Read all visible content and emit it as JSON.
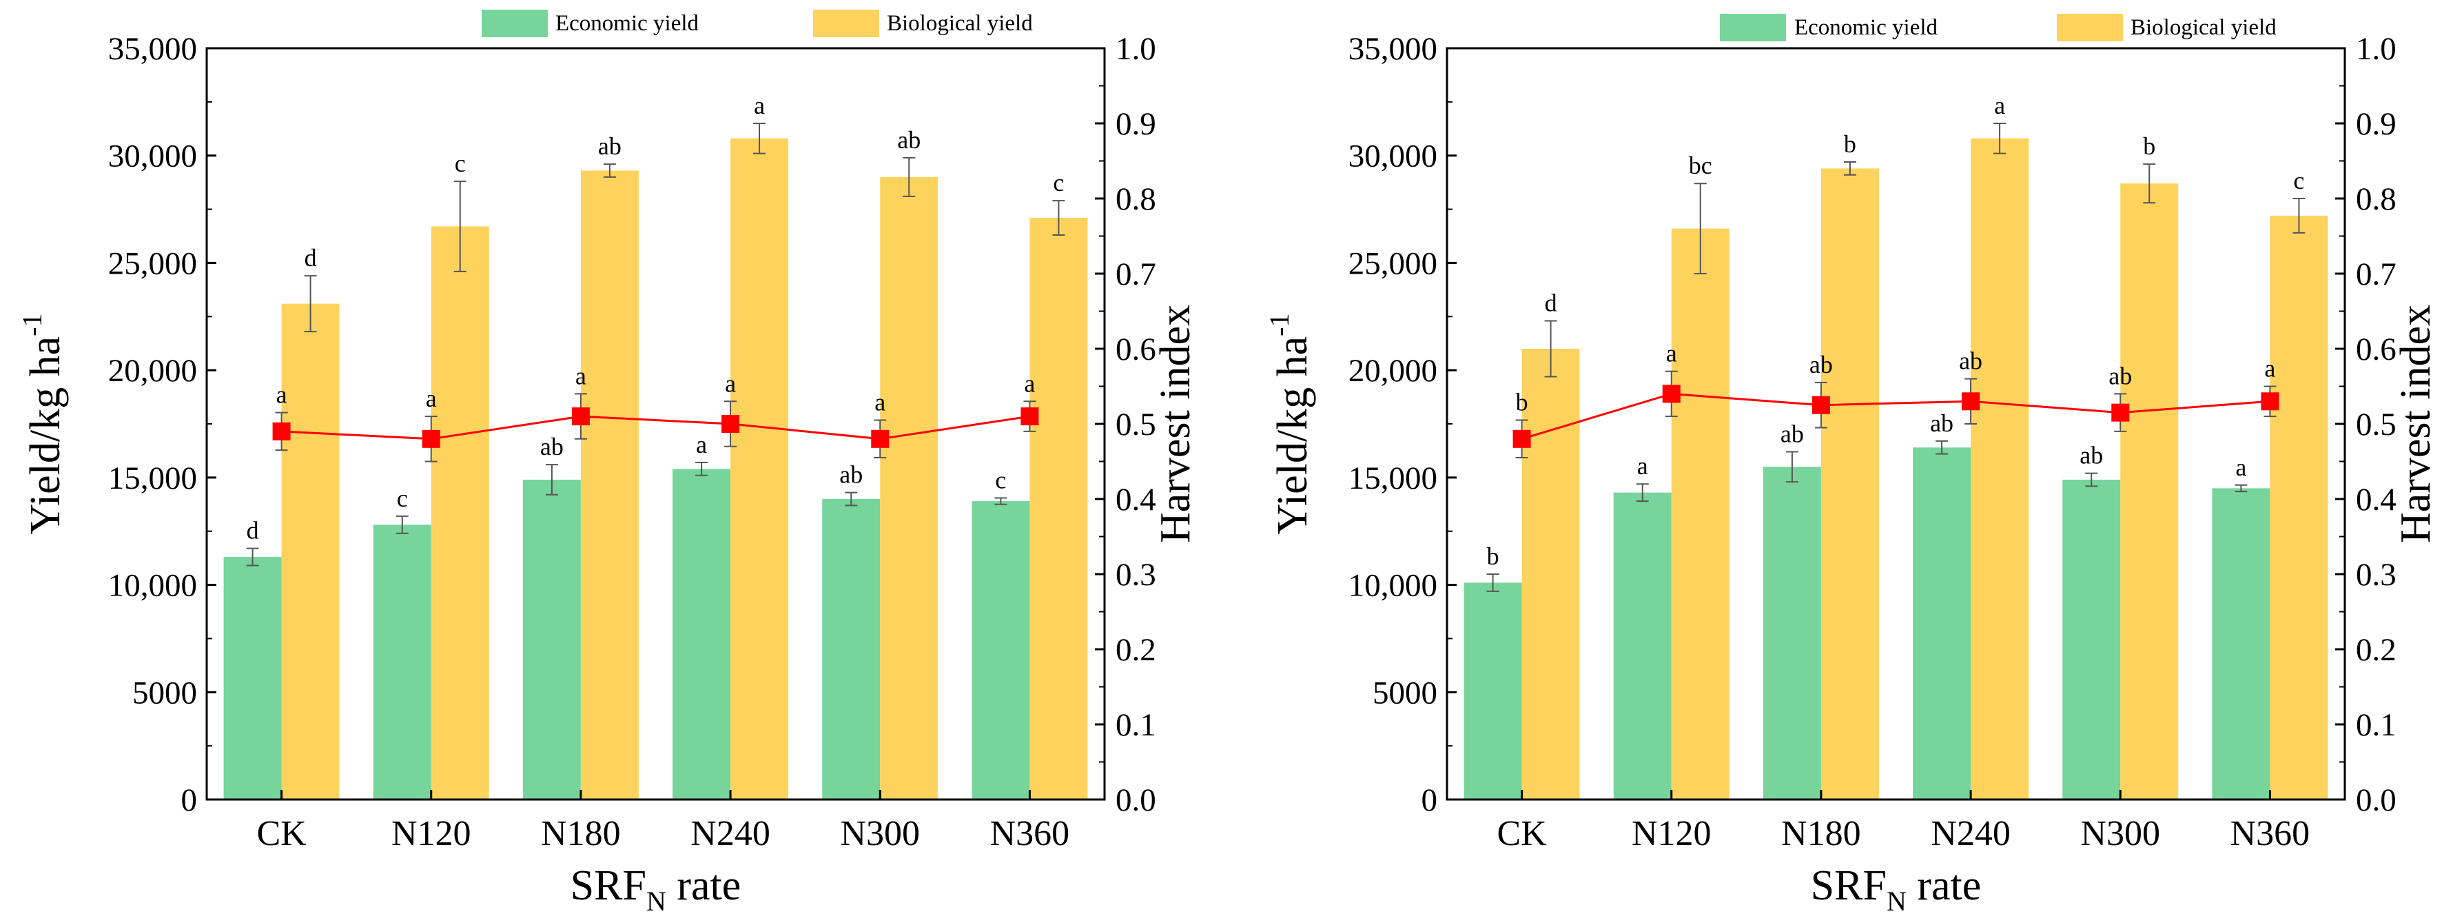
{
  "chart_data": [
    {
      "type": "bar",
      "categories": [
        "CK",
        "N120",
        "N180",
        "N240",
        "N300",
        "N360"
      ],
      "xlabel": {
        "main": "SRF",
        "sub": "N",
        "rest": " rate"
      },
      "ylabel": {
        "main": "Yield/kg ha",
        "sup": "-1"
      },
      "y2label": "Harvest index",
      "ylim": [
        0,
        35000
      ],
      "y2lim": [
        0,
        1.0
      ],
      "yticks": [
        0,
        5000,
        10000,
        15000,
        20000,
        25000,
        30000,
        35000
      ],
      "ytick_labels": [
        "0",
        "5000",
        "10,000",
        "15,000",
        "20,000",
        "25,000",
        "30,000",
        "35,000"
      ],
      "y2ticks": [
        0,
        0.1,
        0.2,
        0.3,
        0.4,
        0.5,
        0.6,
        0.7,
        0.8,
        0.9,
        1.0
      ],
      "y2tick_labels": [
        "0.0",
        "0.1",
        "0.2",
        "0.3",
        "0.4",
        "0.5",
        "0.6",
        "0.7",
        "0.8",
        "0.9",
        "1.0"
      ],
      "legend": {
        "position": "top",
        "entries": [
          "Economic yield",
          "Biological yield"
        ]
      },
      "series": [
        {
          "name": "Economic yield",
          "kind": "bar",
          "axis": "left",
          "color": "#77d49b",
          "values": [
            11300,
            12800,
            14900,
            15400,
            14000,
            13900
          ],
          "errors": [
            400,
            400,
            700,
            300,
            300,
            150
          ],
          "letters": [
            "d",
            "c",
            "ab",
            "a",
            "ab",
            "c"
          ]
        },
        {
          "name": "Biological yield",
          "kind": "bar",
          "axis": "left",
          "color": "#fdd35e",
          "values": [
            23100,
            26700,
            29300,
            30800,
            29000,
            27100
          ],
          "errors": [
            1300,
            2100,
            300,
            700,
            900,
            800
          ],
          "letters": [
            "d",
            "c",
            "ab",
            "a",
            "ab",
            "c"
          ]
        },
        {
          "name": "Harvest index",
          "kind": "line",
          "axis": "right",
          "color": "#ff0000",
          "values": [
            0.49,
            0.48,
            0.51,
            0.5,
            0.48,
            0.51
          ],
          "errors": [
            0.025,
            0.03,
            0.03,
            0.03,
            0.025,
            0.02
          ],
          "letters": [
            "a",
            "a",
            "a",
            "a",
            "a",
            "a"
          ]
        }
      ]
    },
    {
      "type": "bar",
      "categories": [
        "CK",
        "N120",
        "N180",
        "N240",
        "N300",
        "N360"
      ],
      "xlabel": {
        "main": "SRF",
        "sub": "N",
        "rest": " rate"
      },
      "ylabel": {
        "main": "Yield/kg ha",
        "sup": "-1"
      },
      "y2label": "Harvest index",
      "ylim": [
        0,
        35000
      ],
      "y2lim": [
        0,
        1.0
      ],
      "yticks": [
        0,
        5000,
        10000,
        15000,
        20000,
        25000,
        30000,
        35000
      ],
      "ytick_labels": [
        "0",
        "5000",
        "10,000",
        "15,000",
        "20,000",
        "25,000",
        "30,000",
        "35,000"
      ],
      "y2ticks": [
        0,
        0.1,
        0.2,
        0.3,
        0.4,
        0.5,
        0.6,
        0.7,
        0.8,
        0.9,
        1.0
      ],
      "y2tick_labels": [
        "0.0",
        "0.1",
        "0.2",
        "0.3",
        "0.4",
        "0.5",
        "0.6",
        "0.7",
        "0.8",
        "0.9",
        "1.0"
      ],
      "legend": {
        "position": "top",
        "entries": [
          "Economic yield",
          "Biological yield"
        ]
      },
      "series": [
        {
          "name": "Economic yield",
          "kind": "bar",
          "axis": "left",
          "color": "#77d49b",
          "values": [
            10100,
            14300,
            15500,
            16400,
            14900,
            14500
          ],
          "errors": [
            400,
            400,
            700,
            300,
            300,
            150
          ],
          "letters": [
            "b",
            "a",
            "ab",
            "ab",
            "ab",
            "a"
          ]
        },
        {
          "name": "Biological yield",
          "kind": "bar",
          "axis": "left",
          "color": "#fdd35e",
          "values": [
            21000,
            26600,
            29400,
            30800,
            28700,
            27200
          ],
          "errors": [
            1300,
            2100,
            300,
            700,
            900,
            800
          ],
          "letters": [
            "d",
            "bc",
            "b",
            "a",
            "b",
            "c"
          ]
        },
        {
          "name": "Harvest index",
          "kind": "line",
          "axis": "right",
          "color": "#ff0000",
          "values": [
            0.48,
            0.54,
            0.525,
            0.53,
            0.515,
            0.53
          ],
          "errors": [
            0.025,
            0.03,
            0.03,
            0.03,
            0.025,
            0.02
          ],
          "letters": [
            "b",
            "a",
            "ab",
            "ab",
            "ab",
            "a"
          ]
        }
      ]
    }
  ]
}
